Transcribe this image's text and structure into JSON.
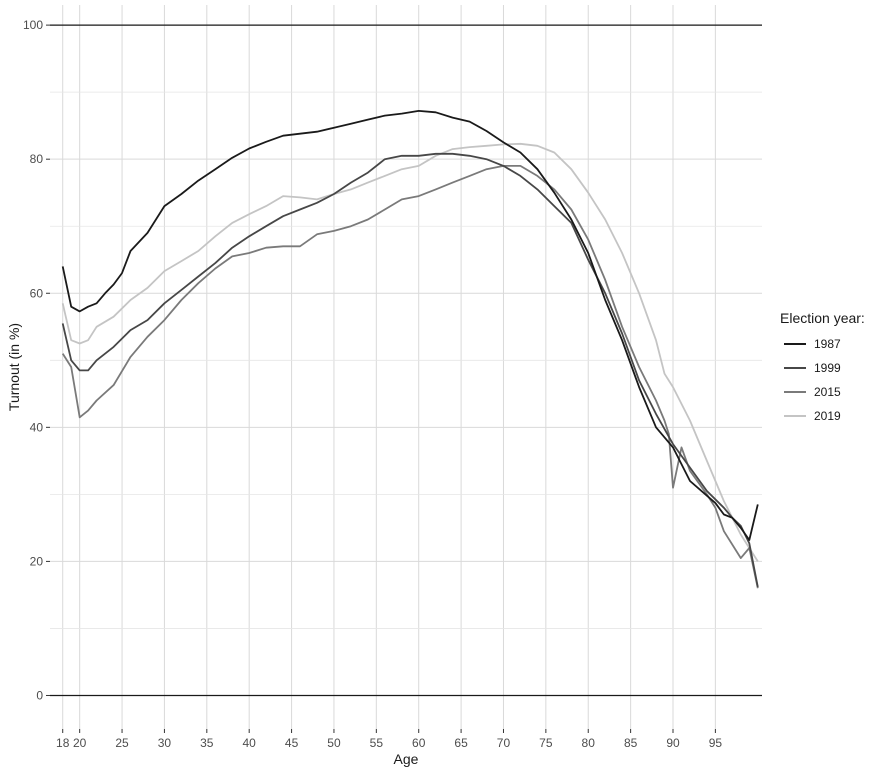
{
  "chart_data": {
    "type": "line",
    "xlabel": "Age",
    "ylabel": "Turnout (in %)",
    "xlim": [
      16.5,
      100.5
    ],
    "ylim": [
      -5,
      103
    ],
    "x_ticks": [
      18,
      20,
      25,
      30,
      35,
      40,
      45,
      50,
      55,
      60,
      65,
      70,
      75,
      80,
      85,
      90,
      95
    ],
    "y_ticks": [
      0,
      20,
      40,
      60,
      80,
      100
    ],
    "x_ticks_display": [
      "18",
      "20",
      "25",
      "30",
      "35",
      "40",
      "45",
      "50",
      "55",
      "60",
      "65",
      "70",
      "75",
      "80",
      "85",
      "90",
      "95"
    ],
    "y_ticks_display": [
      "0",
      "20",
      "40",
      "60",
      "80",
      "100"
    ],
    "reference_lines": [
      0,
      100
    ],
    "grid": true,
    "legend_title": "Election year:",
    "legend_position": "right",
    "series": [
      {
        "name": "1987",
        "color": "#1a1a1a",
        "points": [
          [
            18,
            64
          ],
          [
            19,
            58
          ],
          [
            20,
            57.3
          ],
          [
            21,
            58
          ],
          [
            22,
            58.5
          ],
          [
            23,
            60
          ],
          [
            24,
            61.3
          ],
          [
            25,
            63
          ],
          [
            26,
            66.3
          ],
          [
            28,
            69
          ],
          [
            30,
            73
          ],
          [
            32,
            74.8
          ],
          [
            34,
            76.8
          ],
          [
            36,
            78.5
          ],
          [
            38,
            80.2
          ],
          [
            40,
            81.6
          ],
          [
            42,
            82.6
          ],
          [
            44,
            83.5
          ],
          [
            46,
            83.8
          ],
          [
            48,
            84.1
          ],
          [
            50,
            84.7
          ],
          [
            52,
            85.3
          ],
          [
            54,
            85.9
          ],
          [
            56,
            86.5
          ],
          [
            58,
            86.8
          ],
          [
            60,
            87.2
          ],
          [
            62,
            87
          ],
          [
            64,
            86.2
          ],
          [
            66,
            85.6
          ],
          [
            68,
            84.2
          ],
          [
            70,
            82.5
          ],
          [
            72,
            81
          ],
          [
            74,
            78.5
          ],
          [
            76,
            75
          ],
          [
            78,
            71
          ],
          [
            80,
            66
          ],
          [
            82,
            59
          ],
          [
            84,
            53
          ],
          [
            86,
            46
          ],
          [
            88,
            40
          ],
          [
            90,
            37
          ],
          [
            92,
            32
          ],
          [
            94,
            29.8
          ],
          [
            95,
            28.7
          ],
          [
            96,
            27
          ],
          [
            97,
            26.5
          ],
          [
            98,
            25
          ],
          [
            99,
            23.2
          ],
          [
            100,
            28.5
          ]
        ]
      },
      {
        "name": "1999",
        "color": "#474747",
        "points": [
          [
            18,
            55.5
          ],
          [
            19,
            50
          ],
          [
            20,
            48.5
          ],
          [
            21,
            48.5
          ],
          [
            22,
            50
          ],
          [
            24,
            52
          ],
          [
            26,
            54.5
          ],
          [
            28,
            56
          ],
          [
            30,
            58.5
          ],
          [
            32,
            60.5
          ],
          [
            34,
            62.5
          ],
          [
            36,
            64.5
          ],
          [
            38,
            66.8
          ],
          [
            40,
            68.5
          ],
          [
            42,
            70
          ],
          [
            44,
            71.5
          ],
          [
            46,
            72.5
          ],
          [
            48,
            73.5
          ],
          [
            50,
            74.8
          ],
          [
            52,
            76.5
          ],
          [
            54,
            78
          ],
          [
            56,
            80
          ],
          [
            58,
            80.5
          ],
          [
            60,
            80.5
          ],
          [
            62,
            80.8
          ],
          [
            64,
            80.8
          ],
          [
            66,
            80.5
          ],
          [
            68,
            80
          ],
          [
            70,
            79
          ],
          [
            72,
            77.5
          ],
          [
            74,
            75.5
          ],
          [
            76,
            73
          ],
          [
            78,
            70.5
          ],
          [
            80,
            65
          ],
          [
            82,
            60
          ],
          [
            84,
            54
          ],
          [
            86,
            47
          ],
          [
            88,
            42
          ],
          [
            90,
            37.5
          ],
          [
            92,
            34
          ],
          [
            94,
            30.5
          ],
          [
            96,
            28
          ],
          [
            97,
            26.5
          ],
          [
            98,
            25.3
          ],
          [
            99,
            22.7
          ],
          [
            100,
            16.2
          ]
        ]
      },
      {
        "name": "2015",
        "color": "#7a7a7a",
        "points": [
          [
            18,
            51
          ],
          [
            19,
            49
          ],
          [
            20,
            41.5
          ],
          [
            21,
            42.5
          ],
          [
            22,
            44
          ],
          [
            24,
            46.3
          ],
          [
            26,
            50.5
          ],
          [
            28,
            53.5
          ],
          [
            30,
            56
          ],
          [
            32,
            59
          ],
          [
            34,
            61.5
          ],
          [
            36,
            63.7
          ],
          [
            38,
            65.5
          ],
          [
            40,
            66
          ],
          [
            42,
            66.8
          ],
          [
            44,
            67
          ],
          [
            46,
            67
          ],
          [
            48,
            68.8
          ],
          [
            50,
            69.3
          ],
          [
            52,
            70
          ],
          [
            54,
            71
          ],
          [
            56,
            72.5
          ],
          [
            58,
            74
          ],
          [
            60,
            74.5
          ],
          [
            62,
            75.5
          ],
          [
            64,
            76.5
          ],
          [
            66,
            77.5
          ],
          [
            68,
            78.5
          ],
          [
            70,
            79
          ],
          [
            72,
            79
          ],
          [
            74,
            77.5
          ],
          [
            76,
            75.5
          ],
          [
            78,
            72.5
          ],
          [
            80,
            68
          ],
          [
            82,
            62
          ],
          [
            84,
            55
          ],
          [
            86,
            49
          ],
          [
            88,
            44
          ],
          [
            89,
            41
          ],
          [
            89.5,
            39
          ],
          [
            90,
            31
          ],
          [
            91,
            37
          ],
          [
            92,
            33.5
          ],
          [
            94,
            30
          ],
          [
            95,
            28
          ],
          [
            96,
            24.5
          ],
          [
            98,
            20.5
          ],
          [
            99,
            22
          ],
          [
            100,
            16
          ]
        ]
      },
      {
        "name": "2019",
        "color": "#c4c4c4",
        "points": [
          [
            18,
            58.5
          ],
          [
            19,
            53
          ],
          [
            20,
            52.5
          ],
          [
            21,
            53
          ],
          [
            22,
            55
          ],
          [
            24,
            56.5
          ],
          [
            26,
            59
          ],
          [
            28,
            60.8
          ],
          [
            30,
            63.3
          ],
          [
            32,
            64.8
          ],
          [
            34,
            66.3
          ],
          [
            36,
            68.5
          ],
          [
            38,
            70.5
          ],
          [
            40,
            71.8
          ],
          [
            42,
            73
          ],
          [
            44,
            74.5
          ],
          [
            46,
            74.3
          ],
          [
            48,
            74
          ],
          [
            50,
            74.8
          ],
          [
            52,
            75.5
          ],
          [
            54,
            76.5
          ],
          [
            56,
            77.5
          ],
          [
            58,
            78.5
          ],
          [
            60,
            79
          ],
          [
            62,
            80.5
          ],
          [
            64,
            81.5
          ],
          [
            66,
            81.8
          ],
          [
            68,
            82
          ],
          [
            70,
            82.2
          ],
          [
            72,
            82.3
          ],
          [
            74,
            82
          ],
          [
            76,
            81
          ],
          [
            78,
            78.5
          ],
          [
            80,
            75
          ],
          [
            82,
            71
          ],
          [
            84,
            66
          ],
          [
            86,
            60
          ],
          [
            88,
            53
          ],
          [
            89,
            48
          ],
          [
            90,
            46
          ],
          [
            92,
            41
          ],
          [
            94,
            35
          ],
          [
            96,
            29
          ],
          [
            98,
            24
          ],
          [
            100,
            20
          ]
        ]
      }
    ]
  }
}
